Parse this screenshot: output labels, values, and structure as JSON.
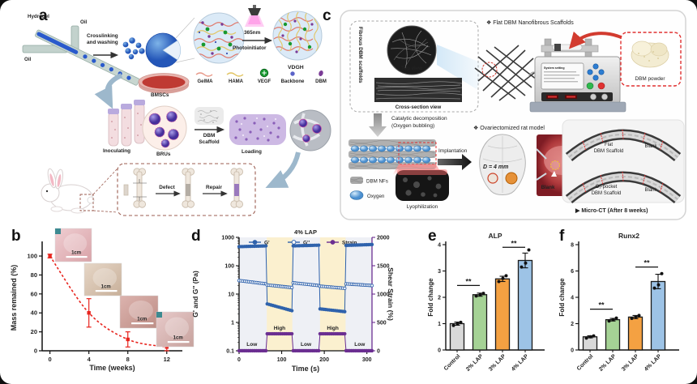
{
  "figure": {
    "panels": {
      "a": "a",
      "b": "b",
      "c": "c",
      "d": "d",
      "e": "e",
      "f": "f"
    }
  },
  "panel_a": {
    "hydrogel": "Hydrogel",
    "oil_top": "Oil",
    "oil_left": "Oil",
    "crosslinking_line1": "Crosslinking",
    "crosslinking_line2": "and washing",
    "uv_nm": "365nm",
    "photoinitiator": "Photoinitiator",
    "vdgh": "VDGH",
    "legend": {
      "gelma": "GelMA",
      "hama": "HAMA",
      "vegf": "VEGF",
      "backbone": "Backbone",
      "dbm": "DBM"
    },
    "bmscs": "BMSCs",
    "inoculating": "Inoculating",
    "brus": "BRUs",
    "dbm_scaffold_line1": "DBM",
    "dbm_scaffold_line2": "Scaffold",
    "loading": "Loading",
    "defect": "Defect",
    "repair": "Repair"
  },
  "panel_c": {
    "flat_dbm": "❖ Flat DBM Nanofibrous Scaffolds",
    "fibrous": "Fibrous DBM scaffolds",
    "top_view": "Top view",
    "cross_section": "Cross-section view",
    "system_setting": "System setting",
    "dbm_powder": "DBM powder",
    "catalytic_line1": "Catalytic decomposition",
    "catalytic_line2": "(Oxygen bubbling)",
    "dbm_nfs": "DBM NFs",
    "oxygen": "Oxygen",
    "lyophilization": "Lyophilization",
    "implantation": "Implantation",
    "diameter": "D = 4 mm",
    "ovariectomized": "❖ Ovariectomized rat model",
    "photo_blank": "Blank",
    "photo_sample": "Sample",
    "ct_flat_line1": "Flat",
    "ct_flat_line2": "DBM Scaffold",
    "ct_blank_top": "Blank",
    "ct_o2_line1": "O₂-pocket",
    "ct_o2_line2": "DBM Scaffold",
    "ct_blank_bottom": "Blank",
    "micro_ct": "▶ Micro-CT (After 8 weeks)"
  },
  "chart_data": {
    "b": {
      "type": "line",
      "xlabel": "Time (weeks)",
      "ylabel": "Mass remained (%)",
      "x_ticks": [
        0,
        4,
        8,
        12
      ],
      "y_ticks": [
        0,
        20,
        40,
        60,
        80,
        100
      ],
      "xlim": [
        -0.8,
        13.6
      ],
      "ylim": [
        0,
        112
      ],
      "line_color": "#e8251f",
      "points": [
        {
          "x": 0,
          "y": 100,
          "err": 2
        },
        {
          "x": 4,
          "y": 40,
          "err": 15
        },
        {
          "x": 8,
          "y": 12,
          "err": 8
        },
        {
          "x": 12,
          "y": 4,
          "err": 4
        }
      ],
      "inset_scale_label": "1cm"
    },
    "d": {
      "type": "line",
      "title": "4% LAP",
      "xlabel": "Time (s)",
      "ylabel_left": "G' and G'' (Pa)",
      "ylabel_right": "Shear Strain (%)",
      "xlim": [
        0,
        312
      ],
      "x_ticks": [
        0,
        100,
        200,
        300
      ],
      "y_left_log_ticks": [
        0.1,
        1,
        10,
        100,
        1000
      ],
      "y_right_ticks": [
        0,
        500,
        1000,
        1500,
        2000
      ],
      "high_strain_bands": [
        [
          65,
          125
        ],
        [
          190,
          250
        ]
      ],
      "strain_low_value": 1,
      "strain_high_value": 300,
      "g_color": "#2f62ac",
      "strain_color": "#6b2e91",
      "zone_labels": [
        {
          "x": 30,
          "text": "Low",
          "level": "low"
        },
        {
          "x": 95,
          "text": "High",
          "level": "high"
        },
        {
          "x": 157,
          "text": "Low",
          "level": "low"
        },
        {
          "x": 220,
          "text": "High",
          "level": "high"
        },
        {
          "x": 283,
          "text": "Low",
          "level": "low"
        }
      ],
      "series": [
        {
          "name": "G'",
          "axis": "left",
          "marker": "filled",
          "points": [
            [
              0,
              470
            ],
            [
              63,
              500
            ],
            [
              66,
              4.5
            ],
            [
              124,
              2.6
            ],
            [
              127,
              500
            ],
            [
              187,
              530
            ],
            [
              190,
              3.0
            ],
            [
              248,
              2.4
            ],
            [
              251,
              520
            ],
            [
              312,
              560
            ]
          ]
        },
        {
          "name": "G''",
          "axis": "left",
          "marker": "open",
          "points": [
            [
              0,
              30
            ],
            [
              63,
              23
            ],
            [
              66,
              21
            ],
            [
              124,
              17
            ],
            [
              127,
              25
            ],
            [
              187,
              20
            ],
            [
              190,
              19
            ],
            [
              248,
              16
            ],
            [
              251,
              23
            ],
            [
              312,
              20
            ]
          ]
        },
        {
          "name": "Strain",
          "axis": "right",
          "marker": "filled",
          "points": [
            [
              0,
              1
            ],
            [
              63,
              1
            ],
            [
              66,
              300
            ],
            [
              124,
              300
            ],
            [
              127,
              1
            ],
            [
              187,
              1
            ],
            [
              190,
              300
            ],
            [
              248,
              300
            ],
            [
              251,
              1
            ],
            [
              312,
              1
            ]
          ]
        }
      ]
    },
    "e": {
      "type": "bar",
      "title": "ALP",
      "ylabel": "Fold change",
      "categories": [
        "Control",
        "2% LAP",
        "3% LAP",
        "4% LAP"
      ],
      "values": [
        1.0,
        2.1,
        2.7,
        3.4
      ],
      "errors": [
        0.06,
        0.06,
        0.1,
        0.28
      ],
      "dots": [
        [
          0.93,
          1.0,
          1.05
        ],
        [
          2.05,
          2.1,
          2.15
        ],
        [
          2.6,
          2.72,
          2.82
        ],
        [
          3.15,
          3.3,
          3.8
        ]
      ],
      "bar_colors": [
        "#d9d9d9",
        "#a5d295",
        "#f4a142",
        "#9dc3e6"
      ],
      "ylim": [
        0,
        4
      ],
      "y_ticks": [
        0,
        1,
        2,
        3,
        4
      ],
      "significance": [
        {
          "from": 0,
          "to": 1,
          "label": "**",
          "y": 2.45
        },
        {
          "from": 2,
          "to": 3,
          "label": "**",
          "y": 3.9
        }
      ]
    },
    "f": {
      "type": "bar",
      "title": "Runx2",
      "ylabel": "Fold change",
      "categories": [
        "Control",
        "2% LAP",
        "3% LAP",
        "4% LAP"
      ],
      "values": [
        1.0,
        2.3,
        2.5,
        5.2
      ],
      "errors": [
        0.08,
        0.1,
        0.12,
        0.55
      ],
      "dots": [
        [
          0.9,
          1.0,
          1.07
        ],
        [
          2.2,
          2.3,
          2.42
        ],
        [
          2.4,
          2.52,
          2.62
        ],
        [
          4.7,
          4.95,
          5.8
        ]
      ],
      "bar_colors": [
        "#d9d9d9",
        "#a5d295",
        "#f4a142",
        "#9dc3e6"
      ],
      "ylim": [
        0,
        8
      ],
      "y_ticks": [
        0,
        2,
        4,
        6,
        8
      ],
      "significance": [
        {
          "from": 0,
          "to": 1,
          "label": "**",
          "y": 3.1
        },
        {
          "from": 2,
          "to": 3,
          "label": "**",
          "y": 6.3
        }
      ]
    }
  }
}
